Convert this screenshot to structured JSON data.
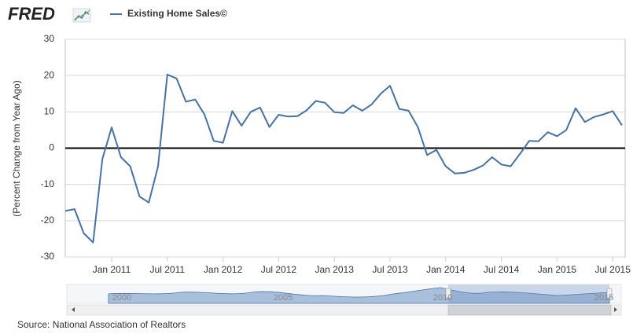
{
  "chart_data": {
    "type": "line",
    "logo": "FRED",
    "title": "Existing Home Sales©",
    "y_axis_label": "(Percent Change from Year Ago)",
    "source": "Source: National Association of Realtors",
    "x": [
      "2010-08",
      "2010-09",
      "2010-10",
      "2010-11",
      "2010-12",
      "2011-01",
      "2011-02",
      "2011-03",
      "2011-04",
      "2011-05",
      "2011-06",
      "2011-07",
      "2011-08",
      "2011-09",
      "2011-10",
      "2011-11",
      "2011-12",
      "2012-01",
      "2012-02",
      "2012-03",
      "2012-04",
      "2012-05",
      "2012-06",
      "2012-07",
      "2012-08",
      "2012-09",
      "2012-10",
      "2012-11",
      "2012-12",
      "2013-01",
      "2013-02",
      "2013-03",
      "2013-04",
      "2013-05",
      "2013-06",
      "2013-07",
      "2013-08",
      "2013-09",
      "2013-10",
      "2013-11",
      "2013-12",
      "2014-01",
      "2014-02",
      "2014-03",
      "2014-04",
      "2014-05",
      "2014-06",
      "2014-07",
      "2014-08",
      "2014-09",
      "2014-10",
      "2014-11",
      "2014-12",
      "2015-01",
      "2015-02",
      "2015-03",
      "2015-04",
      "2015-05",
      "2015-06",
      "2015-07",
      "2015-08"
    ],
    "series": [
      {
        "name": "Existing Home Sales©",
        "color": "#4572a7",
        "values": [
          -17.3,
          -16.8,
          -23.5,
          -26,
          -3,
          5.7,
          -2.5,
          -5,
          -13.3,
          -15,
          -5,
          20.3,
          19.2,
          12.8,
          13.4,
          9.3,
          2,
          1.5,
          10.2,
          6.2,
          10,
          11.2,
          5.8,
          9.2,
          8.7,
          8.8,
          10.4,
          13,
          12.5,
          9.9,
          9.7,
          11.8,
          10.3,
          12,
          15,
          17.2,
          10.8,
          10.3,
          5.8,
          -1.9,
          -0.5,
          -5,
          -7,
          -6.8,
          -6,
          -4.8,
          -2.5,
          -4.5,
          -5,
          -1.6,
          2,
          1.9,
          4.4,
          3.3,
          5,
          11,
          7.2,
          8.6,
          9.3,
          10.2,
          6.3
        ]
      }
    ],
    "ylim": [
      -30,
      30
    ],
    "yticks": [
      -30,
      -20,
      -10,
      0,
      10,
      20,
      30
    ],
    "xticks": [
      {
        "value": "2011-01",
        "label": "Jan 2011"
      },
      {
        "value": "2011-07",
        "label": "Jul 2011"
      },
      {
        "value": "2012-01",
        "label": "Jan 2012"
      },
      {
        "value": "2012-07",
        "label": "Jul 2012"
      },
      {
        "value": "2013-01",
        "label": "Jan 2013"
      },
      {
        "value": "2013-07",
        "label": "Jul 2013"
      },
      {
        "value": "2014-01",
        "label": "Jan 2014"
      },
      {
        "value": "2014-07",
        "label": "Jul 2014"
      },
      {
        "value": "2015-01",
        "label": "Jan 2015"
      },
      {
        "value": "2015-07",
        "label": "Jul 2015"
      }
    ],
    "reference_line": 0,
    "grid": true,
    "navigator_labels": [
      "2000",
      "2005",
      "2010",
      "2015"
    ]
  }
}
